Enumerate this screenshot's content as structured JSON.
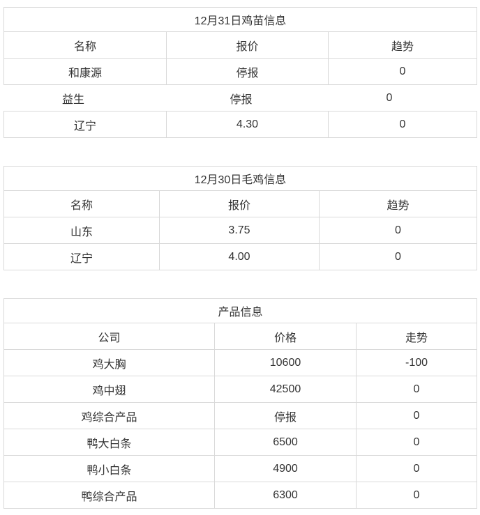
{
  "page": {
    "background_color": "#ffffff",
    "border_color": "#d9d9d9",
    "text_color": "#333333"
  },
  "tables": [
    {
      "name": "chick-info",
      "title": "12月31日鸡苗信息",
      "columns": [
        "名称",
        "报价",
        "趋势"
      ],
      "rows": [
        [
          "和康源",
          "停报",
          "0"
        ],
        [
          "益生",
          "停报",
          "0"
        ],
        [
          "辽宁",
          "4.30",
          "0"
        ]
      ]
    },
    {
      "name": "broiler-info",
      "title": "12月30日毛鸡信息",
      "columns": [
        "名称",
        "报价",
        "趋势"
      ],
      "rows": [
        [
          "山东",
          "3.75",
          "0"
        ],
        [
          "辽宁",
          "4.00",
          "0"
        ]
      ]
    },
    {
      "name": "product-info",
      "title": "产品信息",
      "columns": [
        "公司",
        "价格",
        "走势"
      ],
      "rows": [
        [
          "鸡大胸",
          "10600",
          "-100"
        ],
        [
          "鸡中翅",
          "42500",
          "0"
        ],
        [
          "鸡综合产品",
          "停报",
          "0"
        ],
        [
          "鸭大白条",
          "6500",
          "0"
        ],
        [
          "鸭小白条",
          "4900",
          "0"
        ],
        [
          "鸭综合产品",
          "6300",
          "0"
        ]
      ]
    }
  ]
}
